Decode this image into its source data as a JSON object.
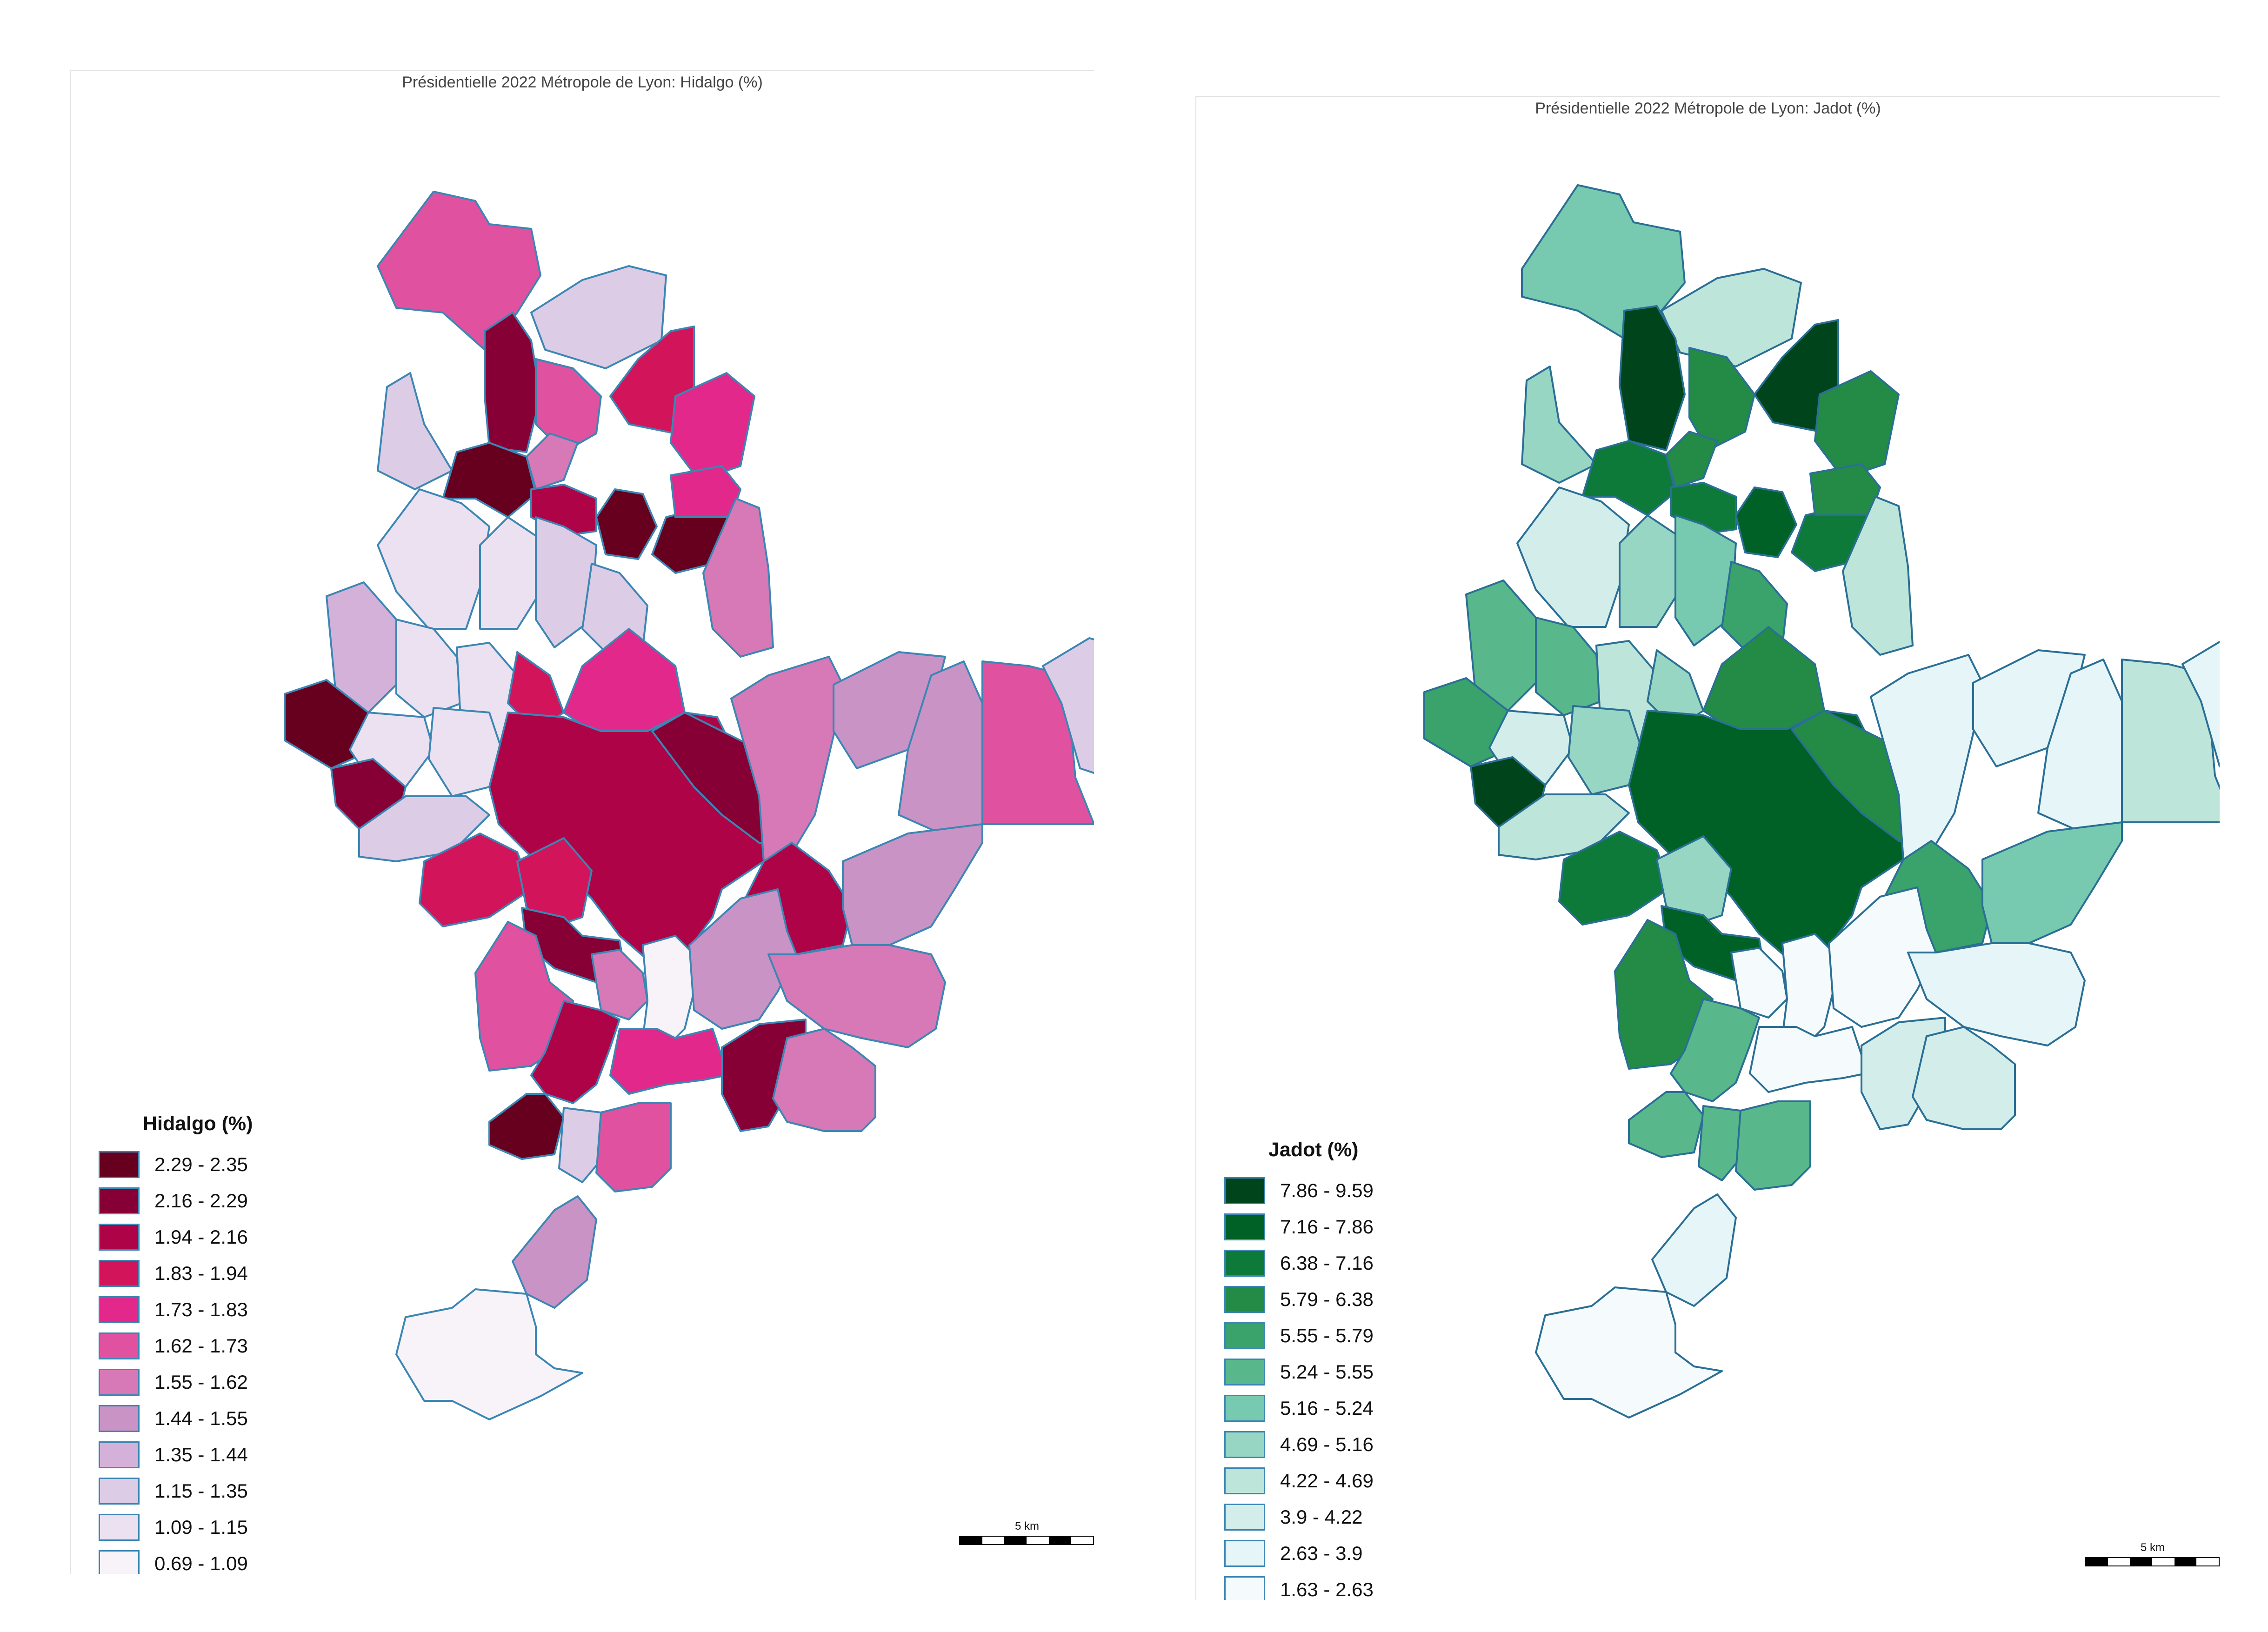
{
  "maps": [
    {
      "title": "Présidentielle 2022 Métropole de Lyon: Hidalgo (%)",
      "legend_title": "Hidalgo (%)",
      "scale_label": "5 km",
      "legend": [
        {
          "label": "2.29 - 2.35",
          "color": "#67001f"
        },
        {
          "label": "2.16 - 2.29",
          "color": "#870035"
        },
        {
          "label": "1.94 - 2.16",
          "color": "#af0348"
        },
        {
          "label": "1.83 - 1.94",
          "color": "#d2145b"
        },
        {
          "label": "1.73 - 1.83",
          "color": "#e2288a"
        },
        {
          "label": "1.62 - 1.73",
          "color": "#e052a0"
        },
        {
          "label": "1.55 - 1.62",
          "color": "#d679b6"
        },
        {
          "label": "1.44 - 1.55",
          "color": "#c993c5"
        },
        {
          "label": "1.35 - 1.44",
          "color": "#d4b1d8"
        },
        {
          "label": "1.15 - 1.35",
          "color": "#ddcce5"
        },
        {
          "label": "1.09 - 1.15",
          "color": "#ebe1f0"
        },
        {
          "label": "0.69 - 1.09",
          "color": "#f7f3f9"
        }
      ]
    },
    {
      "title": "Présidentielle 2022 Métropole de Lyon: Jadot (%)",
      "legend_title": "Jadot (%)",
      "scale_label": "5 km",
      "legend": [
        {
          "label": "7.86 - 9.59",
          "color": "#00441b"
        },
        {
          "label": "7.16 - 7.86",
          "color": "#006127"
        },
        {
          "label": "6.38 - 7.16",
          "color": "#0e7a3a"
        },
        {
          "label": "5.79 - 6.38",
          "color": "#238b45"
        },
        {
          "label": "5.55 - 5.79",
          "color": "#39a36b"
        },
        {
          "label": "5.24 - 5.55",
          "color": "#58b88b"
        },
        {
          "label": "5.16 - 5.24",
          "color": "#77caaf"
        },
        {
          "label": "4.69 - 5.16",
          "color": "#98d6c4"
        },
        {
          "label": "4.22 - 4.69",
          "color": "#bde5da"
        },
        {
          "label": "3.9 - 4.22",
          "color": "#d3eeea"
        },
        {
          "label": "2.63 - 3.9",
          "color": "#e6f5f8"
        },
        {
          "label": "1.63 - 2.63",
          "color": "#f5fbfc"
        }
      ]
    }
  ]
}
